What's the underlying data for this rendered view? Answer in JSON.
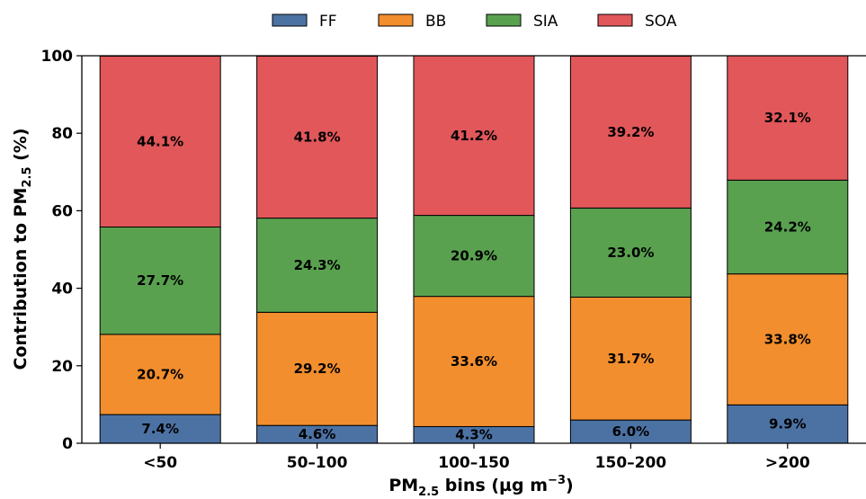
{
  "chart_data": {
    "type": "bar",
    "stacked": true,
    "categories": [
      "<50",
      "50–100",
      "100–150",
      "150–200",
      ">200"
    ],
    "series": [
      {
        "name": "FF",
        "color": "#4c72a4",
        "values": [
          7.4,
          4.6,
          4.3,
          6.0,
          9.9
        ],
        "labels": [
          "7.4%",
          "4.6%",
          "4.3%",
          "6.0%",
          "9.9%"
        ]
      },
      {
        "name": "BB",
        "color": "#f28e2e",
        "values": [
          20.7,
          29.2,
          33.6,
          31.7,
          33.8
        ],
        "labels": [
          "20.7%",
          "29.2%",
          "33.6%",
          "31.7%",
          "33.8%"
        ]
      },
      {
        "name": "SIA",
        "color": "#59a14f",
        "values": [
          27.7,
          24.3,
          20.9,
          23.0,
          24.2
        ],
        "labels": [
          "27.7%",
          "24.3%",
          "20.9%",
          "23.0%",
          "24.2%"
        ]
      },
      {
        "name": "SOA",
        "color": "#e1575a",
        "values": [
          44.1,
          41.8,
          41.2,
          39.2,
          32.1
        ],
        "labels": [
          "44.1%",
          "41.8%",
          "41.2%",
          "39.2%",
          "32.1%"
        ]
      }
    ],
    "title": "",
    "xlabel": {
      "main": "PM",
      "sub": "2.5",
      "rest": " bins (µg m",
      "sup": "−3",
      "end": ")"
    },
    "ylabel": {
      "main": "Contribution to PM",
      "sub": "2.5",
      "end": " (%)"
    },
    "ylim": [
      0,
      100
    ],
    "yticks": [
      0,
      20,
      40,
      60,
      80,
      100
    ],
    "grid": false,
    "legend_position": "top-center"
  }
}
